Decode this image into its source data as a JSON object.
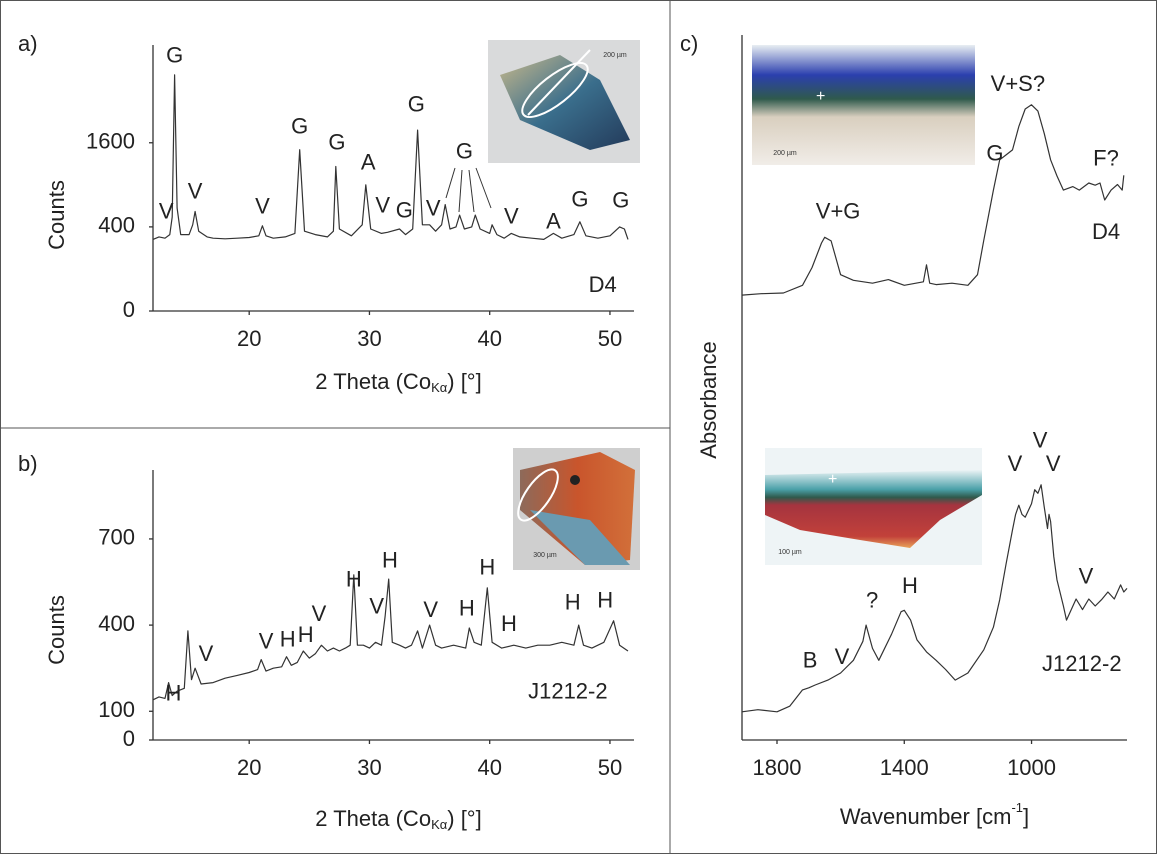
{
  "chart_data": [
    {
      "type": "line",
      "label": "a)",
      "y_label": "Counts",
      "x_label": {
        "text": "2 Theta (Co",
        "sub": "Kα",
        "end": ") [°]"
      },
      "xlim": [
        12,
        52
      ],
      "xticks": [
        20,
        30,
        40,
        50
      ],
      "ylim": [
        0,
        4000
      ],
      "yticks": [
        0,
        400,
        1600
      ],
      "y_scale": "sqrt",
      "inset_scale": "200 µm",
      "series": [
        {
          "color": "#333333",
          "x": [
            12,
            12.5,
            13,
            13.4,
            13.6,
            13.8,
            14,
            14.3,
            15,
            15.3,
            15.5,
            15.8,
            16.5,
            17,
            18,
            19,
            20,
            20.8,
            21.1,
            21.4,
            22,
            23,
            23.8,
            24.2,
            24.6,
            25.5,
            26.5,
            27,
            27.2,
            27.5,
            28.5,
            29.4,
            29.7,
            30.1,
            31,
            31.5,
            32.5,
            33,
            33.6,
            34,
            34.4,
            35,
            35.5,
            36,
            36.3,
            36.7,
            37.2,
            37.5,
            37.9,
            38.5,
            38.8,
            39.2,
            40,
            40.2,
            40.6,
            41.2,
            41.8,
            42.5,
            43.5,
            44.5,
            45.3,
            46,
            47,
            47.5,
            48,
            49,
            50,
            50.8,
            51.2,
            51.5
          ],
          "values": [
            290,
            310,
            300,
            330,
            500,
            3150,
            600,
            330,
            330,
            420,
            560,
            360,
            310,
            300,
            295,
            300,
            305,
            320,
            410,
            320,
            300,
            310,
            340,
            1470,
            360,
            330,
            310,
            360,
            1180,
            380,
            320,
            420,
            900,
            380,
            340,
            350,
            380,
            330,
            380,
            1850,
            420,
            420,
            360,
            420,
            640,
            380,
            400,
            520,
            380,
            400,
            520,
            380,
            340,
            420,
            330,
            300,
            340,
            310,
            300,
            290,
            340,
            300,
            330,
            450,
            320,
            300,
            320,
            400,
            380,
            290
          ]
        }
      ],
      "annotations": [
        {
          "text": "G",
          "x": 13.8,
          "y": 3660
        },
        {
          "text": "V",
          "x": 15.5,
          "y": 789
        },
        {
          "text": "V",
          "x": 13.1,
          "y": 544
        },
        {
          "text": "V",
          "x": 21.1,
          "y": 601
        },
        {
          "text": "G",
          "x": 24.2,
          "y": 1899
        },
        {
          "text": "G",
          "x": 27.3,
          "y": 1582
        },
        {
          "text": "A",
          "x": 29.9,
          "y": 1225
        },
        {
          "text": "V",
          "x": 31.1,
          "y": 613
        },
        {
          "text": "G",
          "x": 32.9,
          "y": 556
        },
        {
          "text": "V",
          "x": 35.3,
          "y": 578
        },
        {
          "text": "G",
          "x": 33.9,
          "y": 2382
        },
        {
          "text": "G",
          "x": 37.9,
          "y": 1415
        },
        {
          "text": "V",
          "x": 41.8,
          "y": 490
        },
        {
          "text": "A",
          "x": 45.3,
          "y": 439
        },
        {
          "text": "G",
          "x": 47.5,
          "y": 686
        },
        {
          "text": "G",
          "x": 50.9,
          "y": 674
        },
        {
          "text": "D4",
          "x": 49.4,
          "y": 35
        }
      ]
    },
    {
      "type": "line",
      "label": "b)",
      "y_label": "Counts",
      "x_label": {
        "text": "2 Theta (Co",
        "sub": "Kα",
        "end": ") [°]"
      },
      "xlim": [
        12,
        52
      ],
      "xticks": [
        20,
        30,
        40,
        50
      ],
      "ylim": [
        0,
        940
      ],
      "yticks": [
        0,
        100,
        400,
        700
      ],
      "inset_scale": "300 µm",
      "series": [
        {
          "color": "#333333",
          "x": [
            12,
            12.5,
            13,
            13.3,
            13.6,
            14,
            14.6,
            14.9,
            15.2,
            15.5,
            16,
            17,
            18,
            19,
            20,
            20.7,
            21,
            21.4,
            22,
            22.7,
            23.1,
            23.5,
            24,
            24.5,
            25,
            25.5,
            26,
            26.5,
            27,
            27.5,
            28,
            28.4,
            28.7,
            29,
            29.5,
            30,
            30.5,
            31,
            31.3,
            31.6,
            31.9,
            32.5,
            33,
            33.5,
            34,
            34.4,
            35,
            35.5,
            36,
            37,
            38,
            38.3,
            38.7,
            39.3,
            39.8,
            40.2,
            41,
            42,
            43,
            44,
            45,
            46,
            47,
            47.4,
            47.8,
            48.5,
            49.5,
            50.3,
            50.8,
            51.5
          ],
          "values": [
            140,
            150,
            145,
            200,
            155,
            170,
            180,
            380,
            210,
            250,
            195,
            200,
            215,
            225,
            235,
            245,
            280,
            240,
            250,
            255,
            290,
            260,
            270,
            310,
            285,
            300,
            330,
            310,
            320,
            310,
            320,
            330,
            575,
            330,
            330,
            320,
            340,
            330,
            430,
            560,
            340,
            330,
            320,
            330,
            380,
            320,
            400,
            330,
            320,
            330,
            320,
            390,
            340,
            330,
            530,
            340,
            320,
            330,
            320,
            330,
            330,
            340,
            330,
            400,
            330,
            320,
            340,
            415,
            330,
            310
          ]
        }
      ],
      "annotations": [
        {
          "text": "H",
          "x": 13.7,
          "y": 157
        },
        {
          "text": "V",
          "x": 16.4,
          "y": 296
        },
        {
          "text": "V",
          "x": 21.4,
          "y": 338
        },
        {
          "text": "H",
          "x": 23.2,
          "y": 345
        },
        {
          "text": "H",
          "x": 24.7,
          "y": 362
        },
        {
          "text": "V",
          "x": 25.8,
          "y": 435
        },
        {
          "text": "H",
          "x": 28.7,
          "y": 554
        },
        {
          "text": "V",
          "x": 30.6,
          "y": 460
        },
        {
          "text": "H",
          "x": 31.7,
          "y": 620
        },
        {
          "text": "V",
          "x": 35.1,
          "y": 449
        },
        {
          "text": "H",
          "x": 38.1,
          "y": 453
        },
        {
          "text": "H",
          "x": 39.8,
          "y": 596
        },
        {
          "text": "H",
          "x": 41.6,
          "y": 400
        },
        {
          "text": "H",
          "x": 46.9,
          "y": 474
        },
        {
          "text": "H",
          "x": 49.6,
          "y": 481
        },
        {
          "text": "J1212-2",
          "x": 46.5,
          "y": 164
        }
      ]
    },
    {
      "type": "line",
      "label": "c)",
      "y_label": "Absorbance",
      "x_label": {
        "text": "Wavenumber [cm",
        "sup": "-1",
        "end": "]"
      },
      "xlim": [
        1910,
        700
      ],
      "xticks": [
        1800,
        1400,
        1000
      ],
      "ylim": [
        0,
        100
      ],
      "inset_scales": [
        "200 µm",
        "100 µm"
      ],
      "series": [
        {
          "color": "#333333",
          "x": [
            1910,
            1850,
            1780,
            1720,
            1690,
            1660,
            1650,
            1630,
            1600,
            1560,
            1500,
            1450,
            1400,
            1340,
            1330,
            1320,
            1300,
            1250,
            1200,
            1170,
            1150,
            1120,
            1100,
            1080,
            1060,
            1040,
            1020,
            1000,
            980,
            960,
            940,
            920,
            900,
            870,
            850,
            820,
            800,
            785,
            770,
            750,
            730,
            715,
            710
          ],
          "values": [
            63.1,
            63.3,
            63.4,
            64.5,
            67,
            70.5,
            71.3,
            70.8,
            66,
            65.2,
            64.8,
            65.3,
            64.5,
            65,
            67.4,
            64.8,
            64.6,
            64.8,
            64.5,
            66,
            70.9,
            78,
            82.3,
            83,
            83.7,
            87,
            89.5,
            90.1,
            89.2,
            86,
            82.3,
            80,
            78,
            78.5,
            78,
            79,
            78.7,
            79,
            76.6,
            78,
            78.8,
            78,
            80.1
          ]
        },
        {
          "color": "#333333",
          "x": [
            1910,
            1860,
            1800,
            1760,
            1720,
            1700,
            1680,
            1640,
            1600,
            1560,
            1530,
            1520,
            1500,
            1480,
            1440,
            1410,
            1400,
            1380,
            1360,
            1330,
            1300,
            1270,
            1240,
            1200,
            1150,
            1120,
            1100,
            1080,
            1060,
            1050,
            1040,
            1030,
            1020,
            1000,
            990,
            980,
            970,
            960,
            950,
            945,
            940,
            930,
            920,
            900,
            890,
            870,
            860,
            840,
            820,
            800,
            780,
            760,
            740,
            720,
            710,
            700
          ],
          "values": [
            4,
            4.3,
            4,
            4.8,
            7.1,
            7.4,
            7.8,
            8.5,
            9.5,
            11.3,
            14,
            16.3,
            13,
            11.3,
            15,
            18.2,
            18.4,
            17,
            14.2,
            12.5,
            11.3,
            10,
            8.5,
            9.5,
            12.8,
            16,
            19.9,
            25,
            29.8,
            32,
            33.3,
            32,
            31.6,
            33.5,
            35.5,
            35,
            36.2,
            33,
            30,
            32,
            31,
            26,
            22.7,
            19,
            17,
            19,
            20,
            18.5,
            20,
            19,
            19.9,
            21,
            20,
            22,
            21,
            21.5
          ]
        }
      ],
      "annotations": [
        {
          "text": "V+G",
          "x": 1608,
          "y": 74.8
        },
        {
          "text": "G",
          "x": 1115,
          "y": 83
        },
        {
          "text": "V+S?",
          "x": 1043,
          "y": 92.9
        },
        {
          "text": "F?",
          "x": 766,
          "y": 82.3
        },
        {
          "text": "D4",
          "x": 766,
          "y": 71.9
        },
        {
          "text": "B",
          "x": 1696,
          "y": 11.1
        },
        {
          "text": "V",
          "x": 1596,
          "y": 11.6
        },
        {
          "text": "?",
          "x": 1501,
          "y": 19.6
        },
        {
          "text": "H",
          "x": 1382,
          "y": 21.7
        },
        {
          "text": "V",
          "x": 1052,
          "y": 39
        },
        {
          "text": "V",
          "x": 973,
          "y": 42.3
        },
        {
          "text": "V",
          "x": 932,
          "y": 39
        },
        {
          "text": "V",
          "x": 829,
          "y": 23
        },
        {
          "text": "J1212-2",
          "x": 842,
          "y": 10.6
        }
      ]
    }
  ]
}
